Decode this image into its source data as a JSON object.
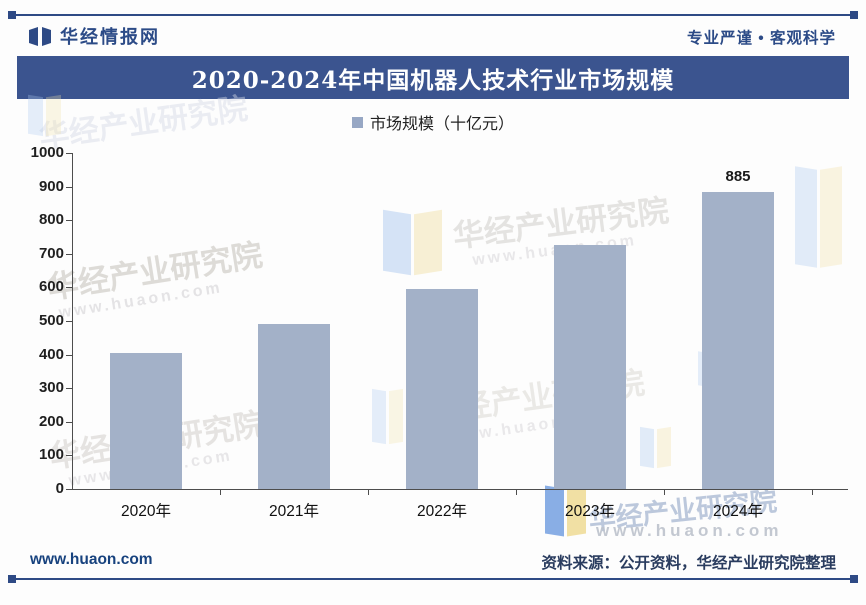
{
  "header": {
    "brand": "华经情报网",
    "slogan": "专业严谨 • 客观科学"
  },
  "title": "2020-2024年中国机器人技术行业市场规模",
  "legend": {
    "label": "市场规模（十亿元）",
    "marker_color": "#97a7c4"
  },
  "chart_data": {
    "type": "bar",
    "title": "2020-2024年中国机器人技术行业市场规模",
    "categories": [
      "2020年",
      "2021年",
      "2022年",
      "2023年",
      "2024年"
    ],
    "values": [
      404,
      492,
      594,
      726,
      885
    ],
    "bar_labels": [
      "",
      "",
      "",
      "",
      "885"
    ],
    "series_name": "市场规模（十亿元）",
    "xlabel": "",
    "ylabel": "",
    "ylim": [
      0,
      1000
    ],
    "ytick_step": 100,
    "grid": false,
    "legend_position": "top",
    "bar_color": "#a3b1c8"
  },
  "watermark": {
    "text": "华经产业研究院",
    "url": "www.huaon.com"
  },
  "footer": {
    "site": "www.huaon.com",
    "source": "资料来源：公开资料，华经产业研究院整理"
  },
  "colors": {
    "navy": "#3b548f",
    "bar": "#a3b1c8",
    "border_line": "#2e4a85"
  }
}
